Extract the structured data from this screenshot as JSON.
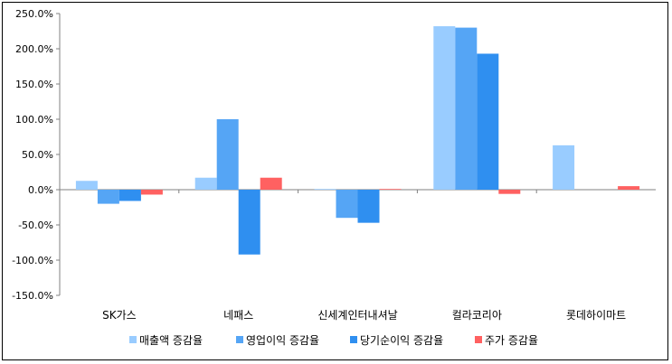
{
  "chart_data": {
    "type": "bar",
    "categories": [
      "SK가스",
      "네패스",
      "신세계인터내셔날",
      "컬라코리아",
      "롯데하이마트"
    ],
    "series": [
      {
        "name": "매출액 증감율",
        "color": "#99ccff",
        "values": [
          12.5,
          17,
          1,
          232,
          63
        ]
      },
      {
        "name": "영업이익 증감율",
        "color": "#55a5f5",
        "values": [
          -20,
          100,
          -40,
          230,
          0
        ]
      },
      {
        "name": "당기순이익 증감율",
        "color": "#2f8ff0",
        "values": [
          -16,
          -92,
          -47,
          193,
          0
        ]
      },
      {
        "name": "주가 증감율",
        "color": "#ff6161",
        "values": [
          -7,
          17,
          1,
          -6,
          5
        ]
      }
    ],
    "ylim": [
      -150,
      250
    ],
    "yticks": [
      "250.0%",
      "200.0%",
      "150.0%",
      "100.0%",
      "50.0%",
      "0.0%",
      "-50.0%",
      "-100.0%",
      "-150.0%"
    ],
    "ytick_values": [
      250,
      200,
      150,
      100,
      50,
      0,
      -50,
      -100,
      -150
    ],
    "legend_position": "bottom",
    "grid": false
  }
}
